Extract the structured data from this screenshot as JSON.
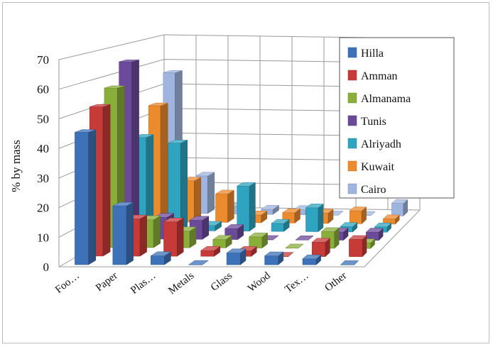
{
  "chart_data": {
    "type": "bar",
    "subtype": "3d-column",
    "title": "",
    "xlabel": "",
    "ylabel": "% by mass",
    "ylim": [
      0,
      70
    ],
    "yticks": [
      0,
      10,
      20,
      30,
      40,
      50,
      60,
      70
    ],
    "grid": true,
    "legend_position": "top-right",
    "categories": [
      "Foo…",
      "Paper",
      "Plas…",
      "Metals",
      "Glass",
      "Wood",
      "Tex…",
      "Other"
    ],
    "series": [
      {
        "name": "Hilla",
        "color": "#3e72b8",
        "values": [
          45,
          20,
          3,
          0,
          4,
          3,
          2,
          0
        ]
      },
      {
        "name": "Amman",
        "color": "#c63a38",
        "values": [
          52,
          13,
          12,
          2,
          2,
          0,
          5,
          6
        ]
      },
      {
        "name": "Almanama",
        "color": "#8aae3a",
        "values": [
          57,
          10,
          6,
          3,
          4,
          0,
          6,
          2
        ]
      },
      {
        "name": "Tunis",
        "color": "#6b4a9a",
        "values": [
          65,
          8,
          7,
          4,
          0,
          0,
          3,
          3
        ]
      },
      {
        "name": "Alriyadh",
        "color": "#2fa4c0",
        "values": [
          35,
          33,
          2,
          17,
          3,
          9,
          2,
          2
        ]
      },
      {
        "name": "Kuwait",
        "color": "#ec8a2e",
        "values": [
          45,
          16,
          11,
          3,
          4,
          4,
          5,
          2
        ]
      },
      {
        "name": "Cairo",
        "color": "#9fb5df",
        "values": [
          56,
          15,
          3,
          2,
          2,
          0,
          0,
          5
        ]
      }
    ]
  }
}
